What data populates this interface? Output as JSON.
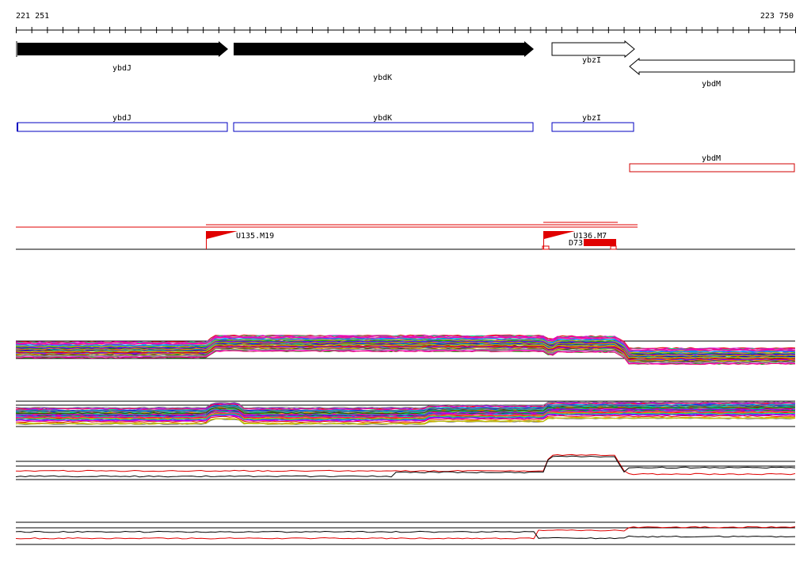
{
  "ruler": {
    "start": "221 251",
    "end": "223 750"
  },
  "genes": [
    {
      "label": "ybdJ"
    },
    {
      "label": "ybdK"
    },
    {
      "label": "ybzI"
    },
    {
      "label": "ybdM"
    }
  ],
  "transcripts": [
    {
      "label": "ybdJ"
    },
    {
      "label": "ybdK"
    },
    {
      "label": "ybzI"
    },
    {
      "label": "ybdM"
    }
  ],
  "features": [
    {
      "label": "U135.M19"
    },
    {
      "label": "U136.M7"
    },
    {
      "label": "D73"
    }
  ]
}
